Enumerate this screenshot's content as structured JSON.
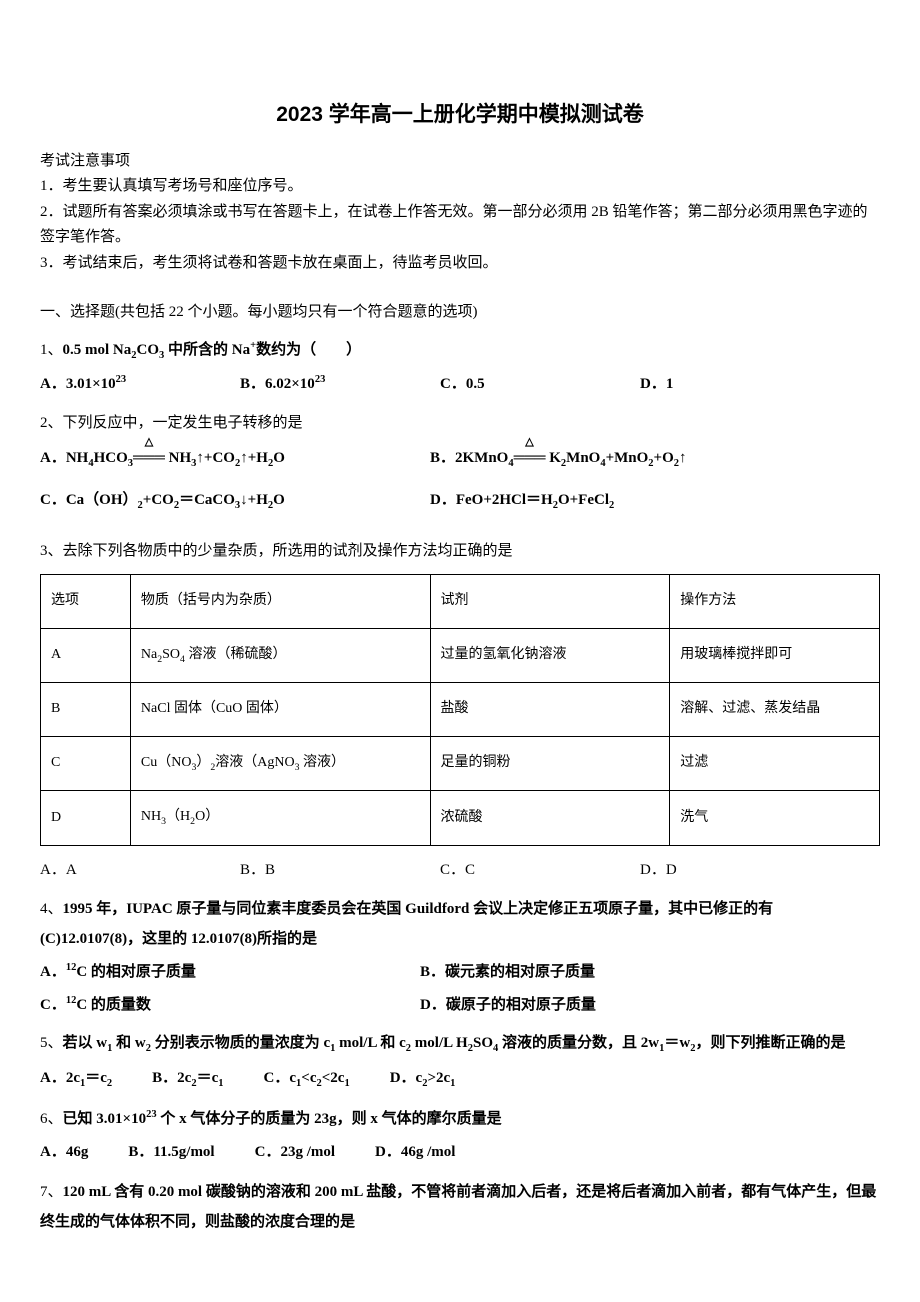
{
  "title": "2023 学年高一上册化学期中模拟测试卷",
  "instructions": {
    "header": "考试注意事项",
    "line1": "1．考生要认真填写考场号和座位序号。",
    "line2": "2．试题所有答案必须填涂或书写在答题卡上，在试卷上作答无效。第一部分必须用 2B 铅笔作答；第二部分必须用黑色字迹的签字笔作答。",
    "line3": "3．考试结束后，考生须将试卷和答题卡放在桌面上，待监考员收回。"
  },
  "section1_header": "一、选择题(共包括 22 个小题。每小题均只有一个符合题意的选项)",
  "q1": {
    "prefix": "1、",
    "text_p1": "0.5 mol Na",
    "text_p2": "CO",
    "text_p3": " 中所含的 Na",
    "text_p4": "数约为（　　）",
    "optA": "A．3.01×10",
    "optA_sup": "23",
    "optB": "B．6.02×10",
    "optB_sup": "23",
    "optC": "C．0.5",
    "optD": "D．1"
  },
  "q2": {
    "prefix": "2、",
    "text": "下列反应中，一定发生电子转移的是",
    "optA_p1": "A．NH",
    "optA_p2": "HCO",
    "optA_eq": "═══",
    "optA_p3": " NH",
    "optA_p4": "↑+CO",
    "optA_p5": "↑+H",
    "optA_p6": "O",
    "optB_p1": "B．2KMnO",
    "optB_eq": "═══",
    "optB_p2": " K",
    "optB_p3": "MnO",
    "optB_p4": "+MnO",
    "optB_p5": "+O",
    "optB_p6": "↑",
    "optC_p1": "C．Ca（OH）",
    "optC_p2": "+CO",
    "optC_p3": "＝CaCO",
    "optC_p4": "↓+H",
    "optC_p5": "O",
    "optD_p1": "D．FeO+2HCl＝H",
    "optD_p2": "O+FeCl",
    "triangle": "△"
  },
  "q3": {
    "prefix": "3、",
    "text": "去除下列各物质中的少量杂质，所选用的试剂及操作方法均正确的是",
    "headers": {
      "option": "选项",
      "substance": "物质（括号内为杂质）",
      "reagent": "试剂",
      "method": "操作方法"
    },
    "rows": [
      {
        "opt": "A",
        "sub_p1": "Na",
        "sub_p2": "SO",
        "sub_p3": " 溶液（稀硫酸）",
        "reagent": "过量的氢氧化钠溶液",
        "method": "用玻璃棒搅拌即可"
      },
      {
        "opt": "B",
        "sub_plain": "NaCl 固体（CuO 固体）",
        "reagent": "盐酸",
        "method": "溶解、过滤、蒸发结晶"
      },
      {
        "opt": "C",
        "sub_p1": "Cu（NO",
        "sub_p2": "）",
        "sub_p3": "溶液（AgNO",
        "sub_p4": " 溶液）",
        "reagent": "足量的铜粉",
        "method": "过滤"
      },
      {
        "opt": "D",
        "sub_p1": "NH",
        "sub_p2": "（H",
        "sub_p3": "O）",
        "reagent": "浓硫酸",
        "method": "洗气"
      }
    ],
    "optA": "A．A",
    "optB": "B．B",
    "optC": "C．C",
    "optD": "D．D"
  },
  "q4": {
    "prefix": "4、",
    "text_p1": "1995 年，IUPAC 原子量与同位素丰度委员会在英国 Guildford 会议上决定修正五项原子量，其中已修正的有",
    "text_p2": "(C)12.0107(8)，这里的 12.0107(8)所指的是",
    "optA_p1": "A．",
    "optA_sup": "12",
    "optA_p2": "C 的相对原子质量",
    "optB": "B．碳元素的相对原子质量",
    "optC_p1": "C．",
    "optC_sup": "12",
    "optC_p2": "C 的质量数",
    "optD": "D．碳原子的相对原子质量"
  },
  "q5": {
    "prefix": "5、",
    "text_p1": "若以 w",
    "text_p2": " 和 w",
    "text_p3": " 分别表示物质的量浓度为 c",
    "text_p4": " mol/L 和 c",
    "text_p5": " mol/L H",
    "text_p6": "SO",
    "text_p7": " 溶液的质量分数，且 2w",
    "text_p8": "＝w",
    "text_p9": "，则下列推断正确的是",
    "optA_p1": "A．2c",
    "optA_p2": "＝c",
    "optB_p1": "B．2c",
    "optB_p2": "＝c",
    "optC_p1": "C．c",
    "optC_p2": "<c",
    "optC_p3": "<2c",
    "optD_p1": "D．c",
    "optD_p2": ">2c"
  },
  "q6": {
    "prefix": "6、",
    "text_p1": "已知 3.01×10",
    "text_sup": "23",
    "text_p2": " 个 x 气体分子的质量为 23g，则 x 气体的摩尔质量是",
    "optA": "A．46g",
    "optB": "B．11.5g/mol",
    "optC": "C．23g /mol",
    "optD": "D．46g /mol"
  },
  "q7": {
    "prefix": "7、",
    "text": "120 mL 含有 0.20 mol 碳酸钠的溶液和 200 mL 盐酸，不管将前者滴加入后者，还是将后者滴加入前者，都有气体产生，但最终生成的气体体积不同，则盐酸的浓度合理的是"
  }
}
